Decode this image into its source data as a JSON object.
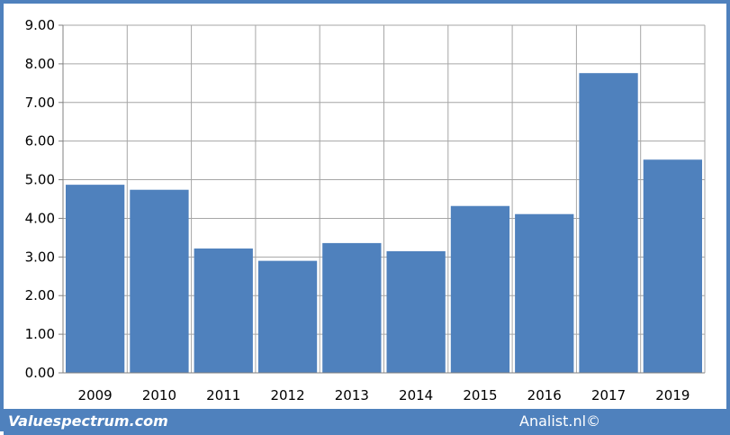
{
  "chart_data": {
    "type": "bar",
    "categories": [
      "2009",
      "2010",
      "2011",
      "2012",
      "2013",
      "2014",
      "2015",
      "2016",
      "2017",
      "2019"
    ],
    "values": [
      4.87,
      4.74,
      3.22,
      2.9,
      3.36,
      3.15,
      4.32,
      4.11,
      7.76,
      5.52
    ],
    "ylim": [
      0,
      9
    ],
    "yticks": [
      "0.00",
      "1.00",
      "2.00",
      "3.00",
      "4.00",
      "5.00",
      "6.00",
      "7.00",
      "8.00",
      "9.00"
    ],
    "grid": true,
    "bar_color": "#4f81bd",
    "grid_color": "#a6a6a6"
  },
  "footer": {
    "left_text": "Valuespectrum.com",
    "right_text": "Analist.nl©",
    "background": "#4f81bd"
  }
}
